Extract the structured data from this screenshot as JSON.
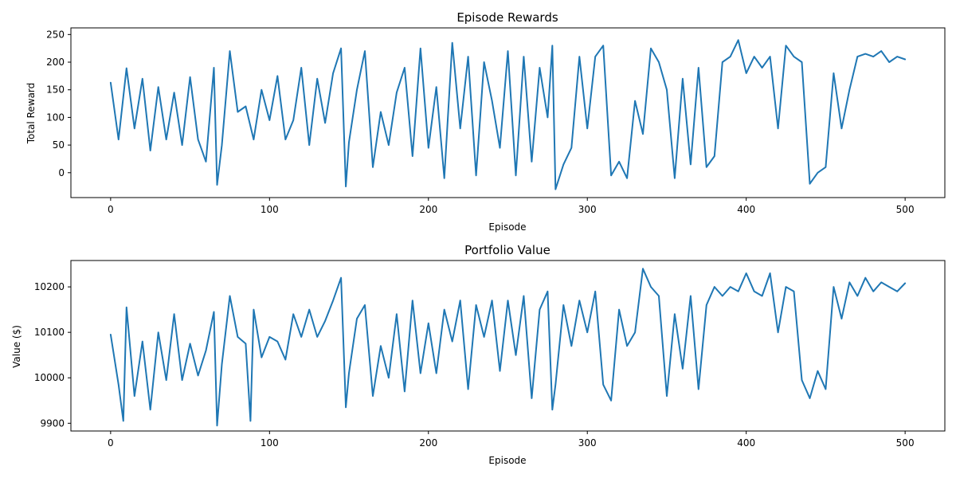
{
  "chart_data": [
    {
      "type": "line",
      "title": "Episode Rewards",
      "xlabel": "Episode",
      "ylabel": "Total Reward",
      "xlim": [
        -25,
        525
      ],
      "ylim": [
        -45,
        262
      ],
      "xticks": [
        0,
        100,
        200,
        300,
        400,
        500
      ],
      "yticks": [
        0,
        50,
        100,
        150,
        200,
        250
      ],
      "grid": false,
      "color": "#1f77b4",
      "series": [
        {
          "x": [
            0,
            5,
            10,
            15,
            20,
            25,
            30,
            35,
            40,
            45,
            50,
            55,
            60,
            65,
            67,
            70,
            75,
            80,
            85,
            90,
            95,
            100,
            105,
            110,
            115,
            120,
            125,
            130,
            135,
            140,
            145,
            148,
            150,
            155,
            160,
            165,
            170,
            175,
            180,
            185,
            190,
            195,
            200,
            205,
            210,
            215,
            220,
            225,
            230,
            235,
            240,
            245,
            250,
            255,
            260,
            265,
            270,
            275,
            278,
            280,
            285,
            290,
            295,
            300,
            305,
            310,
            315,
            320,
            325,
            330,
            335,
            340,
            345,
            350,
            355,
            360,
            365,
            370,
            375,
            380,
            385,
            390,
            395,
            400,
            405,
            410,
            415,
            420,
            425,
            430,
            435,
            440,
            445,
            450,
            455,
            460,
            465,
            470,
            475,
            480,
            485,
            490,
            495,
            500
          ],
          "y": [
            163,
            60,
            189,
            80,
            170,
            40,
            155,
            60,
            145,
            50,
            173,
            60,
            20,
            190,
            -22,
            50,
            220,
            110,
            120,
            60,
            150,
            95,
            175,
            60,
            95,
            190,
            50,
            170,
            90,
            180,
            225,
            -25,
            55,
            150,
            220,
            10,
            110,
            50,
            145,
            190,
            30,
            225,
            45,
            155,
            -10,
            235,
            80,
            210,
            -5,
            200,
            130,
            45,
            220,
            -5,
            210,
            20,
            190,
            100,
            230,
            -30,
            15,
            45,
            210,
            80,
            210,
            230,
            -5,
            20,
            -10,
            130,
            70,
            225,
            200,
            150,
            -10,
            170,
            15,
            190,
            10,
            30,
            200,
            210,
            240,
            180,
            210,
            190,
            210,
            80,
            230,
            210,
            200,
            -20,
            0,
            10,
            180,
            80,
            150,
            210,
            215,
            210,
            220,
            200,
            210,
            205
          ]
        }
      ]
    },
    {
      "type": "line",
      "title": "Portfolio Value",
      "xlabel": "Episode",
      "ylabel": "Value ($)",
      "xlim": [
        -25,
        525
      ],
      "ylim": [
        9883,
        10258
      ],
      "xticks": [
        0,
        100,
        200,
        300,
        400,
        500
      ],
      "yticks": [
        9900,
        10000,
        10100,
        10200
      ],
      "grid": false,
      "color": "#1f77b4",
      "series": [
        {
          "x": [
            0,
            5,
            8,
            10,
            15,
            20,
            25,
            30,
            35,
            40,
            45,
            50,
            55,
            60,
            65,
            67,
            70,
            75,
            80,
            85,
            88,
            90,
            95,
            100,
            105,
            110,
            115,
            120,
            125,
            130,
            135,
            140,
            145,
            148,
            150,
            155,
            160,
            165,
            170,
            175,
            180,
            185,
            190,
            195,
            200,
            205,
            210,
            215,
            220,
            225,
            230,
            235,
            240,
            245,
            250,
            255,
            260,
            265,
            270,
            275,
            278,
            280,
            285,
            290,
            295,
            300,
            305,
            310,
            315,
            320,
            325,
            330,
            335,
            340,
            345,
            350,
            355,
            360,
            365,
            370,
            375,
            380,
            385,
            390,
            395,
            400,
            405,
            410,
            415,
            420,
            425,
            430,
            435,
            440,
            445,
            450,
            455,
            460,
            465,
            470,
            475,
            480,
            485,
            490,
            495,
            500
          ],
          "y": [
            10095,
            9985,
            9905,
            10155,
            9960,
            10080,
            9930,
            10100,
            9995,
            10140,
            9995,
            10075,
            10005,
            10060,
            10145,
            9895,
            10030,
            10180,
            10090,
            10075,
            9905,
            10150,
            10045,
            10090,
            10080,
            10040,
            10140,
            10090,
            10150,
            10090,
            10125,
            10170,
            10220,
            9935,
            10010,
            10130,
            10160,
            9960,
            10070,
            10000,
            10140,
            9970,
            10170,
            10010,
            10120,
            10010,
            10150,
            10080,
            10170,
            9975,
            10160,
            10090,
            10170,
            10015,
            10170,
            10050,
            10180,
            9955,
            10150,
            10190,
            9930,
            9985,
            10160,
            10070,
            10170,
            10100,
            10190,
            9985,
            9950,
            10150,
            10070,
            10100,
            10240,
            10200,
            10180,
            9960,
            10140,
            10020,
            10180,
            9975,
            10160,
            10200,
            10180,
            10200,
            10190,
            10230,
            10190,
            10180,
            10230,
            10100,
            10200,
            10190,
            9995,
            9955,
            10015,
            9975,
            10200,
            10130,
            10210,
            10180,
            10220,
            10190,
            10210,
            10200,
            10190,
            10208
          ]
        }
      ]
    }
  ]
}
